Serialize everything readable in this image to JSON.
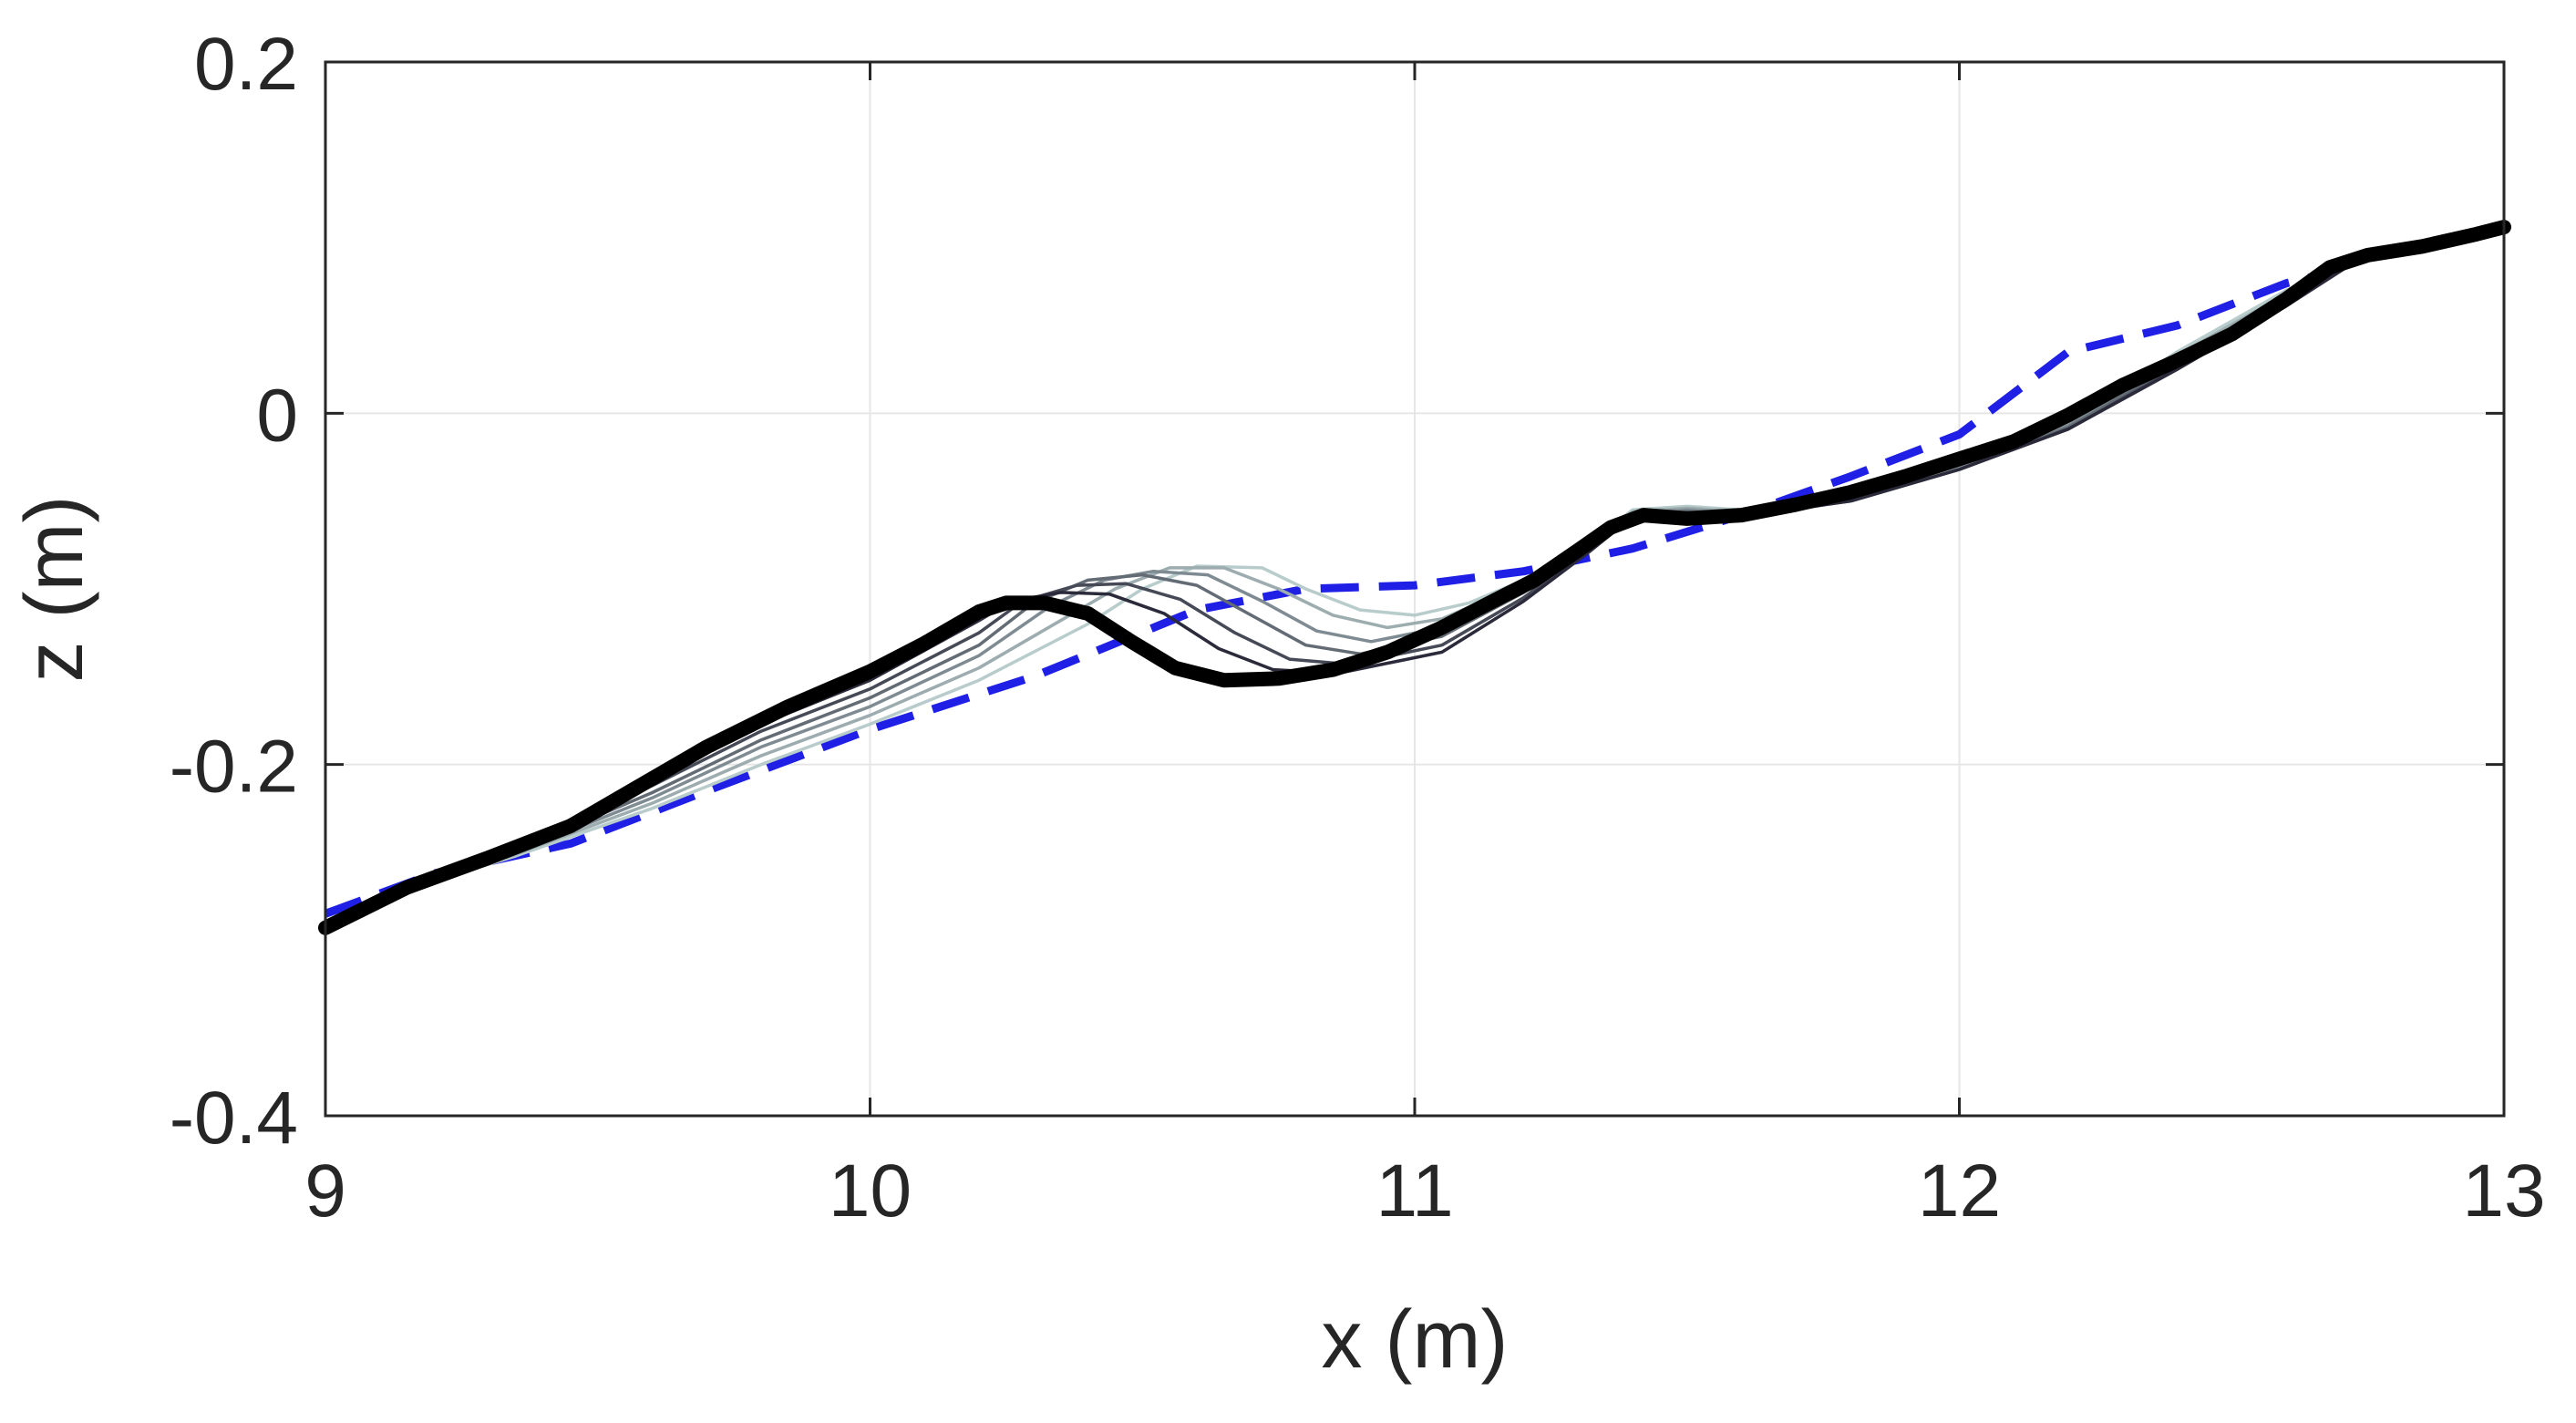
{
  "chart_data": {
    "type": "line",
    "title": "",
    "xlabel": "x (m)",
    "ylabel": "z (m)",
    "xlim": [
      9,
      13
    ],
    "ylim": [
      -0.4,
      0.2
    ],
    "xticks": [
      "9",
      "10",
      "11",
      "12",
      "13"
    ],
    "yticks": [
      "-0.4",
      "-0.2",
      "0",
      "0.2"
    ],
    "xtick_values": [
      9,
      10,
      11,
      12,
      13
    ],
    "ytick_values": [
      -0.4,
      -0.2,
      0,
      0.2
    ],
    "grid": true,
    "legend": "none",
    "colors": {
      "initial_profile": "#1f1fe6",
      "final_profile": "#000000",
      "intermediate_dark": "#2a2a3a",
      "intermediate_light": "#b8cccc",
      "grid": "#e6e6e6",
      "axes": "#262626"
    },
    "series": [
      {
        "role": "initial",
        "style": "dashed",
        "points": [
          [
            9.0,
            -0.285
          ],
          [
            9.2,
            -0.262
          ],
          [
            9.45,
            -0.245
          ],
          [
            9.7,
            -0.215
          ],
          [
            10.0,
            -0.18
          ],
          [
            10.3,
            -0.15
          ],
          [
            10.6,
            -0.112
          ],
          [
            10.8,
            -0.1
          ],
          [
            11.0,
            -0.098
          ],
          [
            11.2,
            -0.09
          ],
          [
            11.4,
            -0.077
          ],
          [
            11.6,
            -0.058
          ],
          [
            11.8,
            -0.036
          ],
          [
            12.0,
            -0.012
          ],
          [
            12.2,
            0.035
          ],
          [
            12.4,
            0.05
          ],
          [
            12.6,
            0.074
          ],
          [
            12.68,
            0.08
          ]
        ]
      },
      {
        "role": "intermediate",
        "points": [
          [
            9.0,
            -0.29
          ],
          [
            9.15,
            -0.271
          ],
          [
            9.35,
            -0.252
          ],
          [
            9.6,
            -0.225
          ],
          [
            9.8,
            -0.2
          ],
          [
            10.0,
            -0.177
          ],
          [
            10.2,
            -0.152
          ],
          [
            10.4,
            -0.12
          ],
          [
            10.5,
            -0.1
          ],
          [
            10.6,
            -0.087
          ],
          [
            10.72,
            -0.088
          ],
          [
            10.8,
            -0.1
          ],
          [
            10.9,
            -0.112
          ],
          [
            11.0,
            -0.115
          ],
          [
            11.1,
            -0.108
          ],
          [
            11.2,
            -0.095
          ],
          [
            11.32,
            -0.075
          ],
          [
            11.4,
            -0.055
          ],
          [
            11.5,
            -0.053
          ],
          [
            11.6,
            -0.055
          ],
          [
            11.8,
            -0.047
          ],
          [
            12.0,
            -0.03
          ],
          [
            12.2,
            -0.005
          ],
          [
            12.4,
            0.035
          ],
          [
            12.6,
            0.07
          ],
          [
            12.72,
            0.085
          ]
        ]
      },
      {
        "role": "intermediate",
        "points": [
          [
            9.0,
            -0.29
          ],
          [
            9.15,
            -0.27
          ],
          [
            9.35,
            -0.251
          ],
          [
            9.6,
            -0.222
          ],
          [
            9.8,
            -0.195
          ],
          [
            10.0,
            -0.172
          ],
          [
            10.2,
            -0.145
          ],
          [
            10.35,
            -0.118
          ],
          [
            10.45,
            -0.1
          ],
          [
            10.55,
            -0.088
          ],
          [
            10.65,
            -0.088
          ],
          [
            10.75,
            -0.1
          ],
          [
            10.85,
            -0.115
          ],
          [
            10.95,
            -0.122
          ],
          [
            11.05,
            -0.117
          ],
          [
            11.2,
            -0.097
          ],
          [
            11.32,
            -0.075
          ],
          [
            11.4,
            -0.056
          ],
          [
            11.5,
            -0.054
          ],
          [
            11.6,
            -0.056
          ],
          [
            11.8,
            -0.048
          ],
          [
            12.0,
            -0.03
          ],
          [
            12.2,
            -0.006
          ],
          [
            12.4,
            0.033
          ],
          [
            12.6,
            0.068
          ],
          [
            12.72,
            0.085
          ]
        ]
      },
      {
        "role": "intermediate",
        "points": [
          [
            9.0,
            -0.29
          ],
          [
            9.15,
            -0.27
          ],
          [
            9.35,
            -0.25
          ],
          [
            9.6,
            -0.219
          ],
          [
            9.8,
            -0.19
          ],
          [
            10.0,
            -0.167
          ],
          [
            10.2,
            -0.138
          ],
          [
            10.33,
            -0.11
          ],
          [
            10.43,
            -0.095
          ],
          [
            10.52,
            -0.09
          ],
          [
            10.62,
            -0.092
          ],
          [
            10.72,
            -0.107
          ],
          [
            10.82,
            -0.124
          ],
          [
            10.92,
            -0.13
          ],
          [
            11.05,
            -0.122
          ],
          [
            11.2,
            -0.1
          ],
          [
            11.32,
            -0.076
          ],
          [
            11.4,
            -0.057
          ],
          [
            11.5,
            -0.055
          ],
          [
            11.6,
            -0.057
          ],
          [
            11.8,
            -0.049
          ],
          [
            12.0,
            -0.031
          ],
          [
            12.2,
            -0.007
          ],
          [
            12.4,
            0.03
          ],
          [
            12.6,
            0.066
          ],
          [
            12.72,
            0.085
          ]
        ]
      },
      {
        "role": "intermediate",
        "points": [
          [
            9.0,
            -0.29
          ],
          [
            9.15,
            -0.27
          ],
          [
            9.35,
            -0.249
          ],
          [
            9.6,
            -0.216
          ],
          [
            9.8,
            -0.186
          ],
          [
            10.0,
            -0.162
          ],
          [
            10.2,
            -0.132
          ],
          [
            10.3,
            -0.108
          ],
          [
            10.4,
            -0.095
          ],
          [
            10.5,
            -0.092
          ],
          [
            10.6,
            -0.098
          ],
          [
            10.7,
            -0.115
          ],
          [
            10.8,
            -0.132
          ],
          [
            10.9,
            -0.137
          ],
          [
            11.05,
            -0.127
          ],
          [
            11.2,
            -0.102
          ],
          [
            11.32,
            -0.077
          ],
          [
            11.4,
            -0.058
          ],
          [
            11.5,
            -0.056
          ],
          [
            11.6,
            -0.058
          ],
          [
            11.8,
            -0.05
          ],
          [
            12.0,
            -0.032
          ],
          [
            12.2,
            -0.008
          ],
          [
            12.4,
            0.028
          ],
          [
            12.6,
            0.064
          ],
          [
            12.72,
            0.085
          ]
        ]
      },
      {
        "role": "intermediate",
        "points": [
          [
            9.0,
            -0.29
          ],
          [
            9.15,
            -0.27
          ],
          [
            9.35,
            -0.248
          ],
          [
            9.6,
            -0.212
          ],
          [
            9.8,
            -0.181
          ],
          [
            10.0,
            -0.157
          ],
          [
            10.2,
            -0.125
          ],
          [
            10.28,
            -0.107
          ],
          [
            10.38,
            -0.098
          ],
          [
            10.47,
            -0.097
          ],
          [
            10.57,
            -0.106
          ],
          [
            10.67,
            -0.125
          ],
          [
            10.77,
            -0.14
          ],
          [
            10.88,
            -0.143
          ],
          [
            11.05,
            -0.132
          ],
          [
            11.2,
            -0.105
          ],
          [
            11.32,
            -0.078
          ],
          [
            11.4,
            -0.059
          ],
          [
            11.5,
            -0.057
          ],
          [
            11.6,
            -0.058
          ],
          [
            11.8,
            -0.05
          ],
          [
            12.0,
            -0.032
          ],
          [
            12.2,
            -0.009
          ],
          [
            12.4,
            0.026
          ],
          [
            12.6,
            0.062
          ],
          [
            12.72,
            0.085
          ]
        ]
      },
      {
        "role": "intermediate",
        "points": [
          [
            9.0,
            -0.29
          ],
          [
            9.15,
            -0.27
          ],
          [
            9.35,
            -0.247
          ],
          [
            9.6,
            -0.209
          ],
          [
            9.8,
            -0.177
          ],
          [
            10.0,
            -0.152
          ],
          [
            10.2,
            -0.118
          ],
          [
            10.26,
            -0.107
          ],
          [
            10.35,
            -0.102
          ],
          [
            10.44,
            -0.103
          ],
          [
            10.54,
            -0.114
          ],
          [
            10.64,
            -0.134
          ],
          [
            10.74,
            -0.146
          ],
          [
            10.86,
            -0.148
          ],
          [
            11.05,
            -0.136
          ],
          [
            11.2,
            -0.107
          ],
          [
            11.32,
            -0.079
          ],
          [
            11.4,
            -0.059
          ],
          [
            11.5,
            -0.058
          ],
          [
            11.6,
            -0.059
          ],
          [
            11.8,
            -0.05
          ],
          [
            12.0,
            -0.032
          ],
          [
            12.2,
            -0.009
          ],
          [
            12.4,
            0.025
          ],
          [
            12.6,
            0.061
          ],
          [
            12.72,
            0.085
          ]
        ]
      },
      {
        "role": "final",
        "style": "solid-thick",
        "points": [
          [
            9.0,
            -0.293
          ],
          [
            9.15,
            -0.27
          ],
          [
            9.3,
            -0.253
          ],
          [
            9.45,
            -0.235
          ],
          [
            9.55,
            -0.217
          ],
          [
            9.7,
            -0.19
          ],
          [
            9.85,
            -0.167
          ],
          [
            10.0,
            -0.147
          ],
          [
            10.1,
            -0.131
          ],
          [
            10.2,
            -0.113
          ],
          [
            10.25,
            -0.108
          ],
          [
            10.32,
            -0.108
          ],
          [
            10.4,
            -0.114
          ],
          [
            10.48,
            -0.13
          ],
          [
            10.56,
            -0.145
          ],
          [
            10.65,
            -0.152
          ],
          [
            10.75,
            -0.151
          ],
          [
            10.85,
            -0.146
          ],
          [
            10.95,
            -0.136
          ],
          [
            11.05,
            -0.122
          ],
          [
            11.15,
            -0.106
          ],
          [
            11.22,
            -0.095
          ],
          [
            11.3,
            -0.078
          ],
          [
            11.36,
            -0.065
          ],
          [
            11.42,
            -0.058
          ],
          [
            11.5,
            -0.06
          ],
          [
            11.6,
            -0.058
          ],
          [
            11.7,
            -0.052
          ],
          [
            11.8,
            -0.045
          ],
          [
            11.9,
            -0.036
          ],
          [
            12.0,
            -0.026
          ],
          [
            12.1,
            -0.016
          ],
          [
            12.2,
            -0.001
          ],
          [
            12.3,
            0.016
          ],
          [
            12.4,
            0.03
          ],
          [
            12.5,
            0.045
          ],
          [
            12.6,
            0.065
          ],
          [
            12.68,
            0.083
          ],
          [
            12.75,
            0.09
          ],
          [
            12.85,
            0.095
          ],
          [
            12.95,
            0.102
          ],
          [
            13.0,
            0.106
          ]
        ]
      }
    ]
  }
}
